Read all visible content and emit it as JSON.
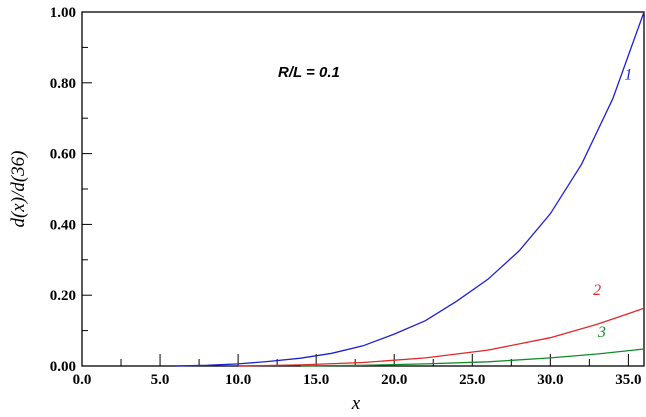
{
  "chart_data": {
    "type": "line",
    "xlabel": "x",
    "ylabel": "d(x)/d(36)",
    "annotation": "R/L = 0.1",
    "xlim": [
      0,
      36
    ],
    "ylim": [
      0,
      1
    ],
    "x_ticks": [
      "0.0",
      "5.0",
      "10.0",
      "15.0",
      "20.0",
      "25.0",
      "30.0",
      "35.0"
    ],
    "y_ticks": [
      "0.00",
      "0.20",
      "0.40",
      "0.60",
      "0.80",
      "1.00"
    ],
    "grid": false,
    "series": [
      {
        "name": "1",
        "color": "#1f1fd6",
        "x": [
          6,
          8,
          10,
          12,
          14,
          16,
          18,
          20,
          22,
          24,
          26,
          28,
          30,
          32,
          34,
          36
        ],
        "y": [
          0.0,
          0.002,
          0.006,
          0.013,
          0.022,
          0.036,
          0.057,
          0.09,
          0.128,
          0.183,
          0.245,
          0.325,
          0.43,
          0.57,
          0.755,
          1.0
        ]
      },
      {
        "name": "2",
        "color": "#e02828",
        "x": [
          10,
          14,
          18,
          22,
          26,
          30,
          33,
          36
        ],
        "y": [
          0.0,
          0.003,
          0.01,
          0.023,
          0.045,
          0.08,
          0.118,
          0.163
        ]
      },
      {
        "name": "3",
        "color": "#128a2a",
        "x": [
          14,
          18,
          22,
          26,
          30,
          33,
          36
        ],
        "y": [
          0.0,
          0.002,
          0.006,
          0.012,
          0.023,
          0.034,
          0.048
        ]
      }
    ]
  }
}
